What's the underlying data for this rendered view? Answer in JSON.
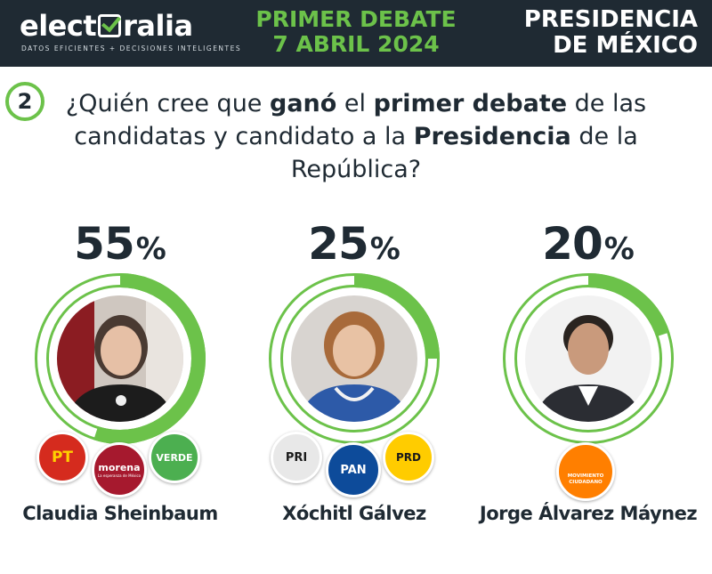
{
  "header": {
    "brand": "electoralia",
    "tagline": "DATOS EFICIENTES + DECISIONES INTELIGENTES",
    "event_line1": "PRIMER DEBATE",
    "event_line2": "7 ABRIL 2024",
    "section_line1": "PRESIDENCIA",
    "section_line2": "DE MÉXICO"
  },
  "question": {
    "number": "2",
    "parts": [
      "¿Quién cree que ",
      "ganó",
      " el ",
      "primer debate",
      " de las candidatas y candidato a la ",
      "Presidencia",
      " de la República?"
    ]
  },
  "chart_data": {
    "type": "pie",
    "title": "¿Quién cree que ganó el primer debate de las candidatas y candidato a la Presidencia de la República?",
    "unit": "%",
    "categories": [
      "Claudia Sheinbaum",
      "Xóchitl Gálvez",
      "Jorge Álvarez Máynez"
    ],
    "values": [
      55,
      25,
      20
    ],
    "ring_color": "#6cc24a",
    "track_color": "#ffffff"
  },
  "candidates": [
    {
      "name": "Claudia Sheinbaum",
      "percent": "55",
      "parties": [
        {
          "label": "PT",
          "color": "#d52b1e",
          "text_color": "#ffd200"
        },
        {
          "label": "morena",
          "sub": "La esperanza de México",
          "color": "#a6192e",
          "text_color": "#ffffff"
        },
        {
          "label": "VERDE",
          "color": "#4caf50",
          "text_color": "#ffffff"
        }
      ]
    },
    {
      "name": "Xóchitl Gálvez",
      "percent": "25",
      "parties": [
        {
          "label": "PRI",
          "color": "#e8e8e8",
          "text_color": "#1a1a1a"
        },
        {
          "label": "PAN",
          "color": "#0d4b9a",
          "text_color": "#ffffff"
        },
        {
          "label": "PRD",
          "color": "#ffcc00",
          "text_color": "#1a1a1a"
        }
      ]
    },
    {
      "name": "Jorge Álvarez Máynez",
      "percent": "20",
      "parties": [
        {
          "label": "MOVIMIENTO CIUDADANO",
          "color": "#ff7f00",
          "text_color": "#ffffff"
        }
      ]
    }
  ],
  "percent_sign": "%"
}
